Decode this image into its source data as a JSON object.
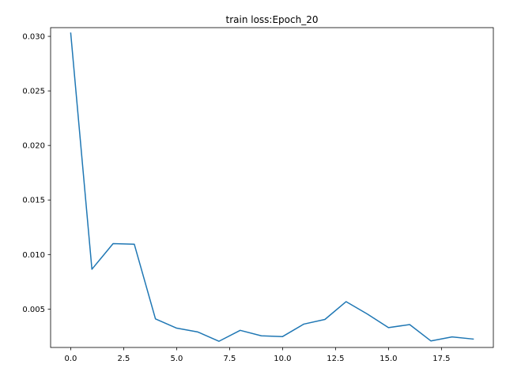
{
  "chart_data": {
    "type": "line",
    "title": "train loss:Epoch_20",
    "xlabel": "",
    "ylabel": "",
    "xlim": [
      -0.95,
      19.95
    ],
    "ylim": [
      0.00148,
      0.0308
    ],
    "grid": false,
    "legend": "none",
    "line_color": "#1f77b4",
    "x_ticks": [
      0.0,
      2.5,
      5.0,
      7.5,
      10.0,
      12.5,
      15.0,
      17.5
    ],
    "x_tick_labels": [
      "0.0",
      "2.5",
      "5.0",
      "7.5",
      "10.0",
      "12.5",
      "15.0",
      "17.5"
    ],
    "y_ticks": [
      0.005,
      0.01,
      0.015,
      0.02,
      0.025,
      0.03
    ],
    "y_tick_labels": [
      "0.005",
      "0.010",
      "0.015",
      "0.020",
      "0.025",
      "0.030"
    ],
    "series": [
      {
        "name": "train loss",
        "x": [
          0,
          1,
          2,
          3,
          4,
          5,
          6,
          7,
          8,
          9,
          10,
          11,
          12,
          13,
          14,
          15,
          16,
          17,
          18,
          19
        ],
        "values": [
          0.0303,
          0.00865,
          0.011,
          0.01095,
          0.0041,
          0.00325,
          0.0029,
          0.00205,
          0.00305,
          0.00255,
          0.00248,
          0.00362,
          0.00405,
          0.00568,
          0.00455,
          0.0033,
          0.00358,
          0.00208,
          0.00245,
          0.00225
        ]
      }
    ]
  }
}
